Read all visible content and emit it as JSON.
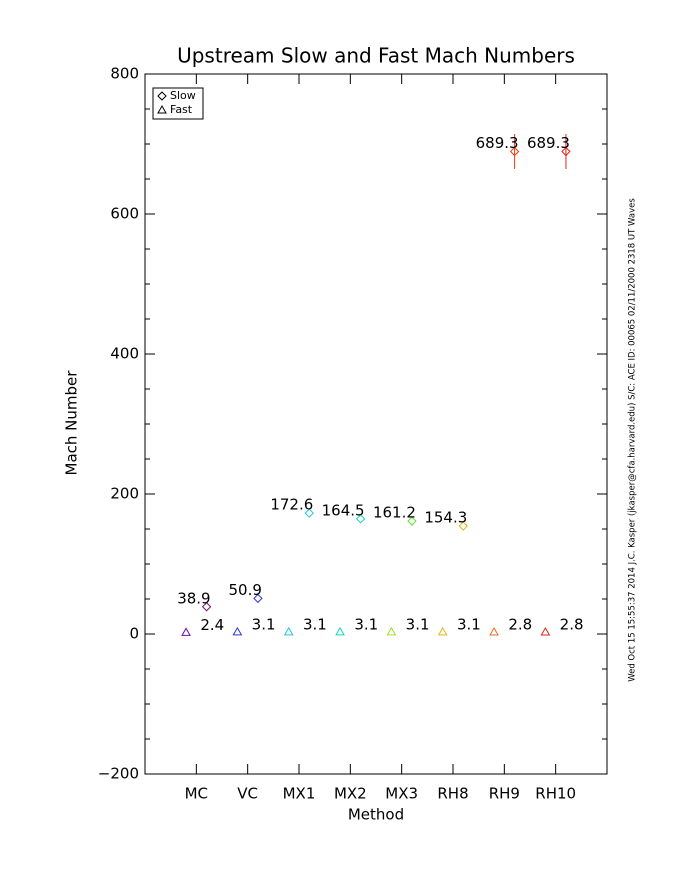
{
  "chart_data": {
    "type": "scatter",
    "title": "Upstream Slow and Fast Mach Numbers",
    "x_label": "Method",
    "y_label": "Mach Number",
    "footnote": "Wed Oct 15 15:55:37 2014   J.C. Kasper (jkasper@cfa.harvard.edu)   S/C: ACE ID: 00065 02/11/2000   2318 UT Waves",
    "categories": [
      "MC",
      "VC",
      "MX1",
      "MX2",
      "MX3",
      "RH8",
      "RH9",
      "RH10"
    ],
    "ylim": [
      -200,
      800
    ],
    "yticks": [
      {
        "value": -200,
        "label": "−200"
      },
      0,
      200,
      400,
      600,
      800
    ],
    "series": [
      {
        "name": "Slow",
        "symbol": "diamond",
        "offset": 0.2,
        "label_side": "left",
        "values": [
          38.9,
          50.9,
          172.6,
          164.5,
          161.2,
          154.3,
          689.3,
          689.3
        ],
        "errors": [
          null,
          null,
          null,
          null,
          null,
          null,
          25,
          25
        ],
        "colors": [
          "#80106a",
          "#2a36e0",
          "#20c4e8",
          "#10dca8",
          "#5ee23c",
          "#e4b418",
          "#ec3a14",
          "#e42410"
        ]
      },
      {
        "name": "Fast",
        "symbol": "triangle",
        "offset": -0.2,
        "label_side": "right",
        "values": [
          2.4,
          3.1,
          3.1,
          3.1,
          3.1,
          3.1,
          2.8,
          2.8
        ],
        "colors": [
          "#6a10a0",
          "#2a36e0",
          "#20c4e8",
          "#10dca8",
          "#a4e020",
          "#e4b418",
          "#f06a20",
          "#e42410"
        ]
      }
    ]
  }
}
